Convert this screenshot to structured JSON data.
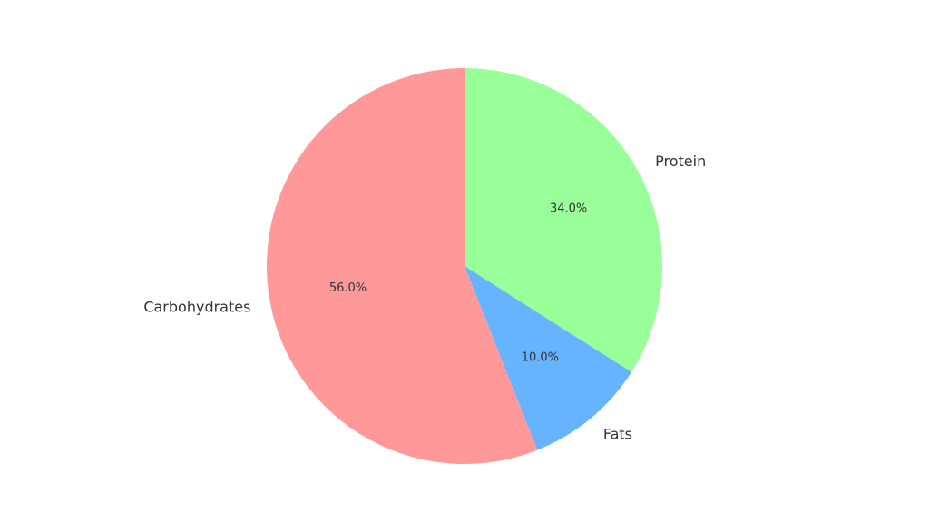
{
  "chart_data": {
    "type": "pie",
    "title": "",
    "slices": [
      {
        "label": "Protein",
        "value": 34.0,
        "pct_label": "34.0%",
        "color": "#99ff99"
      },
      {
        "label": "Fats",
        "value": 10.0,
        "pct_label": "10.0%",
        "color": "#66b3ff"
      },
      {
        "label": "Carbohydrates",
        "value": 56.0,
        "pct_label": "56.0%",
        "color": "#ff9999"
      }
    ],
    "start_angle_deg": 90,
    "direction": "clockwise",
    "legend": "none"
  }
}
